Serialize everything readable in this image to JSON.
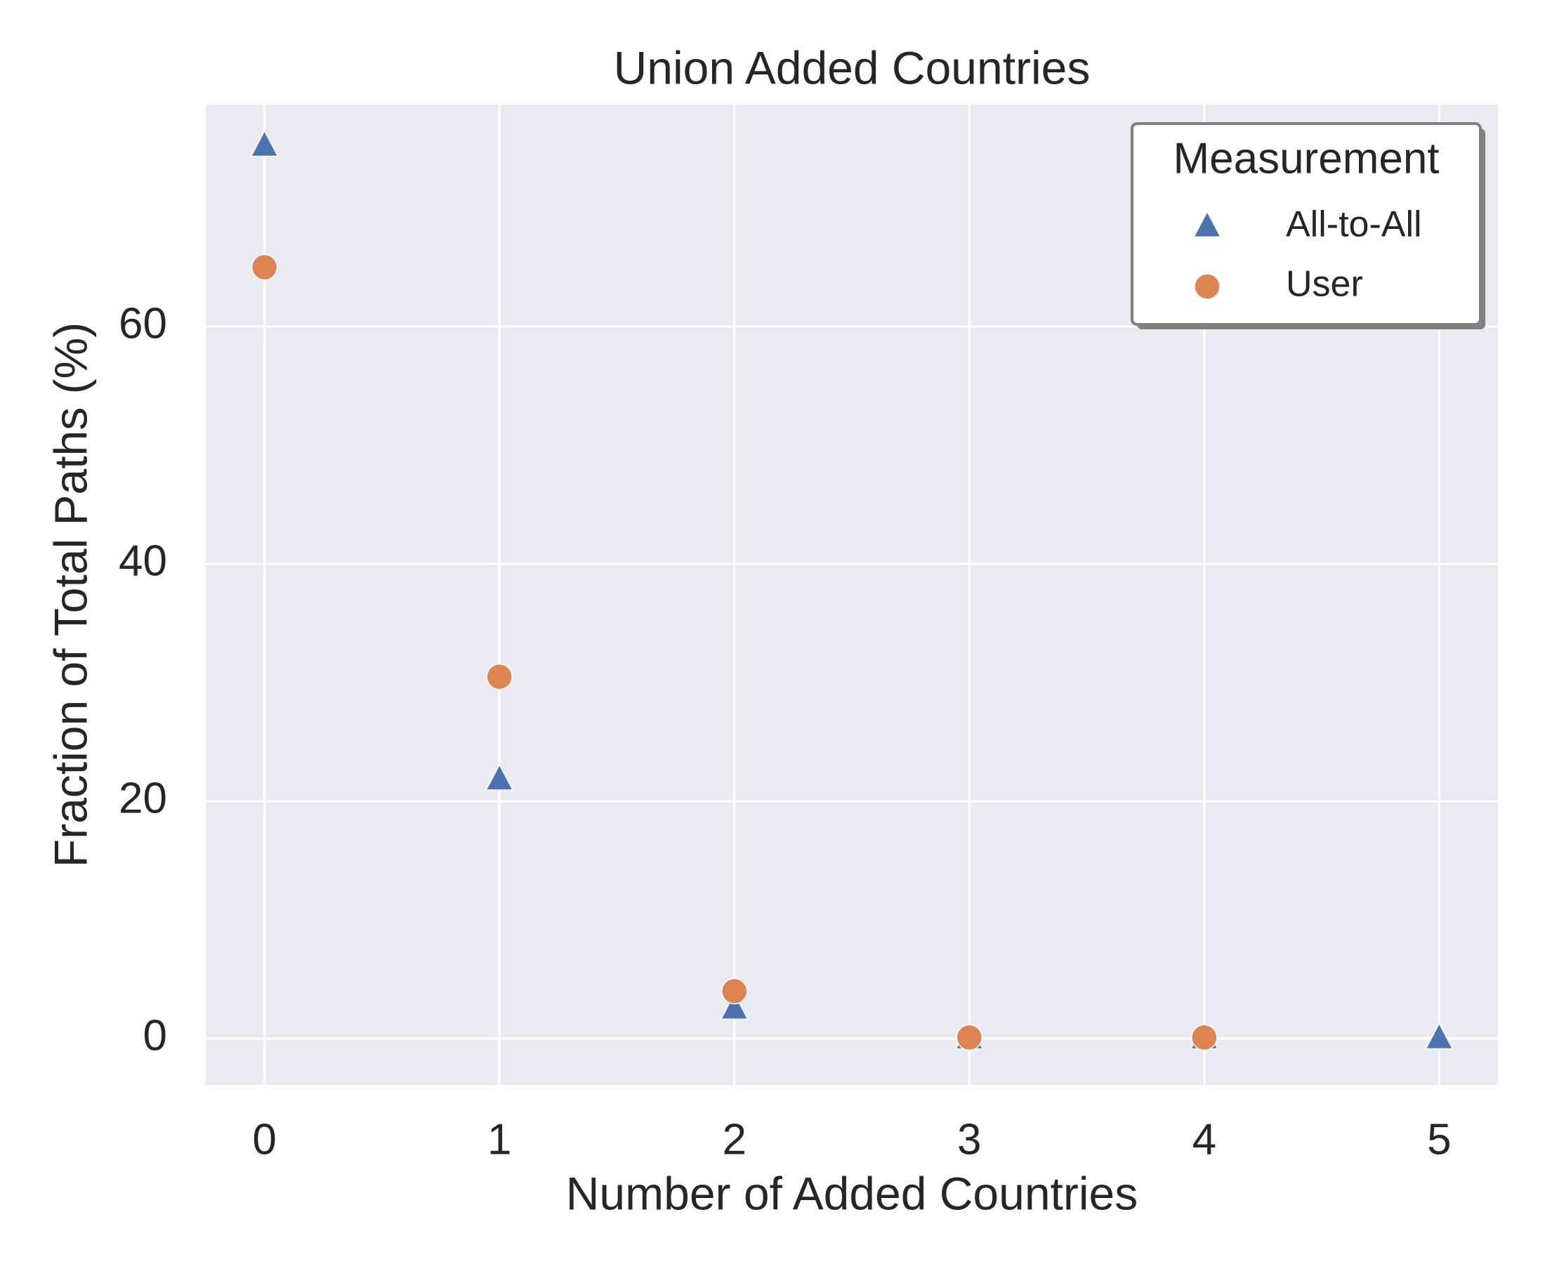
{
  "chart_data": {
    "type": "scatter",
    "title": "Union Added Countries",
    "x_label": "Number of Added Countries",
    "y_label": "Fraction of Total Paths (%)",
    "legend_title": "Measurement",
    "legend_position": "upper right",
    "grid": true,
    "xlim": [
      -0.25,
      5.25
    ],
    "xticks": [
      0,
      1,
      2,
      3,
      4,
      5
    ],
    "ylim": [
      -3.9,
      78.7
    ],
    "yticks": [
      0,
      20,
      40,
      60
    ],
    "series": [
      {
        "name": "All-to-All",
        "color": "#4c72b0",
        "marker": "triangle",
        "x": [
          0,
          1,
          2,
          3,
          4,
          5
        ],
        "values": [
          75.2,
          21.8,
          2.5,
          0,
          0,
          0
        ]
      },
      {
        "name": "User",
        "color": "#dd8452",
        "marker": "circle",
        "x": [
          0,
          1,
          2,
          3,
          4
        ],
        "values": [
          65.0,
          30.5,
          4.0,
          0.1,
          0.1
        ]
      }
    ]
  }
}
